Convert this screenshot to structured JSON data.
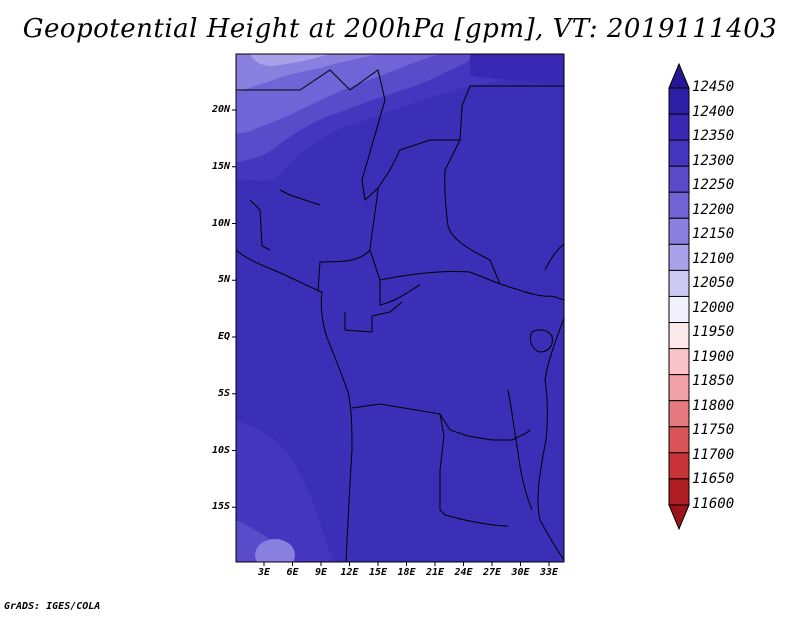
{
  "title": "Geopotential Height at 200hPa [gpm], VT: 2019111403",
  "footer": "GrADS: IGES/COLA",
  "map": {
    "lat_labels": [
      "20N",
      "15N",
      "10N",
      "5N",
      "EQ",
      "5S",
      "10S",
      "15S"
    ],
    "lon_labels": [
      "3E",
      "6E",
      "9E",
      "12E",
      "15E",
      "18E",
      "21E",
      "24E",
      "27E",
      "30E",
      "33E"
    ],
    "background_color": "#3a2fb6"
  },
  "colorbar": {
    "levels": [
      "12450",
      "12400",
      "12350",
      "12300",
      "12250",
      "12200",
      "12150",
      "12100",
      "12050",
      "12000",
      "11950",
      "11900",
      "11850",
      "11800",
      "11750",
      "11700",
      "11650",
      "11600"
    ],
    "colors": [
      "#271797",
      "#2e1fa8",
      "#3828b4",
      "#4536c0",
      "#5a4bcb",
      "#7064d6",
      "#8a80e0",
      "#a9a2eb",
      "#cdc8f4",
      "#f2f1fd",
      "#fde8ea",
      "#fac4c9",
      "#f2a1a7",
      "#e67a80",
      "#d85459",
      "#c73336",
      "#b01e22",
      "#9b1419"
    ]
  }
}
